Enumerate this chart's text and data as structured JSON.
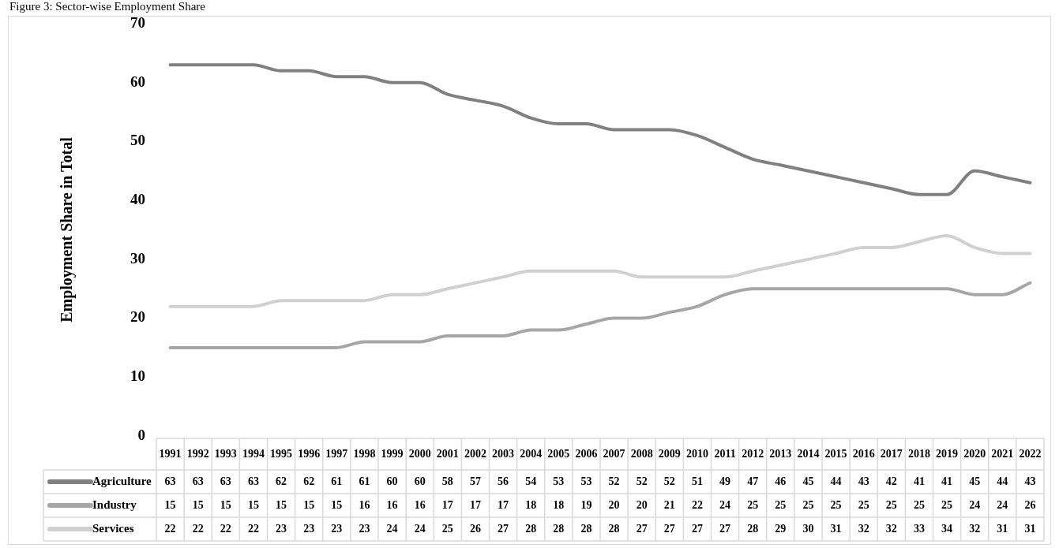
{
  "chart_data": {
    "type": "line",
    "title": "Figure 3: Sector-wise Employment Share",
    "ylabel": "Employment Share in Total",
    "categories": [
      "1991",
      "1992",
      "1993",
      "1994",
      "1995",
      "1996",
      "1997",
      "1998",
      "1999",
      "2000",
      "2001",
      "2002",
      "2003",
      "2004",
      "2005",
      "2006",
      "2007",
      "2008",
      "2009",
      "2010",
      "2011",
      "2012",
      "2013",
      "2014",
      "2015",
      "2016",
      "2017",
      "2018",
      "2019",
      "2020",
      "2021",
      "2022"
    ],
    "series": [
      {
        "name": "Agriculture",
        "color": "#808080",
        "values": [
          63,
          63,
          63,
          63,
          62,
          62,
          61,
          61,
          60,
          60,
          58,
          57,
          56,
          54,
          53,
          53,
          52,
          52,
          52,
          51,
          49,
          47,
          46,
          45,
          44,
          43,
          42,
          41,
          41,
          45,
          44,
          43
        ]
      },
      {
        "name": "Industry",
        "color": "#a6a6a6",
        "values": [
          15,
          15,
          15,
          15,
          15,
          15,
          15,
          16,
          16,
          16,
          17,
          17,
          17,
          18,
          18,
          19,
          20,
          20,
          21,
          22,
          24,
          25,
          25,
          25,
          25,
          25,
          25,
          25,
          25,
          24,
          24,
          26
        ]
      },
      {
        "name": "Services",
        "color": "#d0d0d0",
        "values": [
          22,
          22,
          22,
          22,
          23,
          23,
          23,
          23,
          24,
          24,
          25,
          26,
          27,
          28,
          28,
          28,
          28,
          27,
          27,
          27,
          27,
          28,
          29,
          30,
          31,
          32,
          32,
          33,
          34,
          32,
          31,
          31
        ]
      }
    ],
    "ylim": [
      0,
      70
    ],
    "yticks": [
      0,
      10,
      20,
      30,
      40,
      50,
      60,
      70
    ],
    "grid": false,
    "legend": "bottom",
    "data_labels": true,
    "marker": "none",
    "line_style": "solid"
  }
}
